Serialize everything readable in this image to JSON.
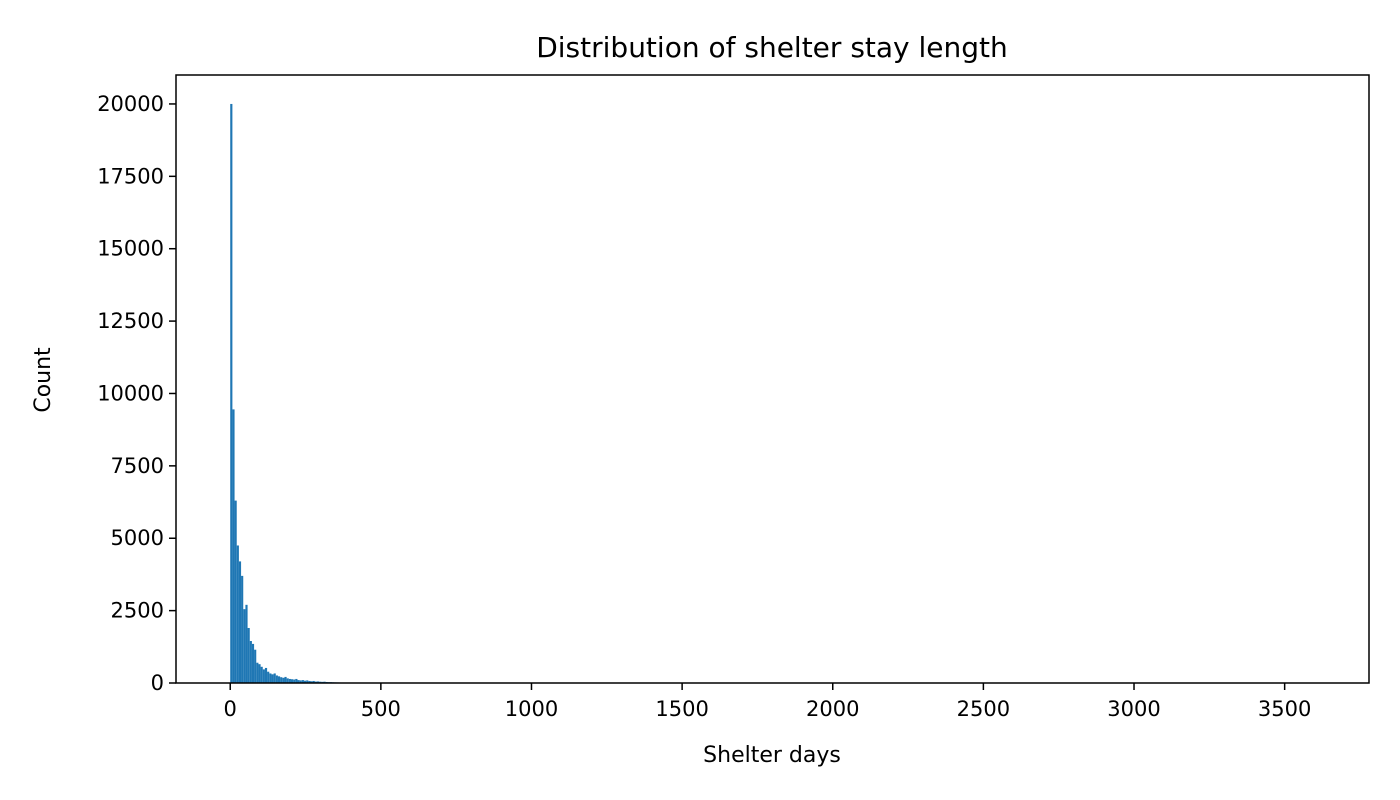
{
  "chart_data": {
    "type": "bar",
    "title": "Distribution of shelter stay length",
    "xlabel": "Shelter days",
    "ylabel": "Count",
    "xlim": [
      -180,
      3780
    ],
    "ylim": [
      0,
      21000
    ],
    "bar_color": "#1f77b4",
    "bin_width": 7.2,
    "xticks": [
      0,
      500,
      1000,
      1500,
      2000,
      2500,
      3000,
      3500
    ],
    "yticks": [
      0,
      2500,
      5000,
      7500,
      10000,
      12500,
      15000,
      17500,
      20000
    ],
    "xtick_labels": [
      "0",
      "500",
      "1000",
      "1500",
      "2000",
      "2500",
      "3000",
      "3500"
    ],
    "ytick_labels": [
      "0",
      "2500",
      "5000",
      "7500",
      "10000",
      "12500",
      "15000",
      "17500",
      "20000"
    ],
    "bin_starts": [
      0,
      7.2,
      14.4,
      21.6,
      28.8,
      36,
      43.2,
      50.4,
      57.6,
      64.8,
      72,
      79.2,
      86.4,
      93.6,
      100.8,
      108,
      115.2,
      122.4,
      129.6,
      136.8,
      144,
      151.2,
      158.4,
      165.6,
      172.8,
      180,
      187.2,
      194.4,
      201.6,
      208.8,
      216,
      223.2,
      230.4,
      237.6,
      244.8,
      252,
      259.2,
      266.4,
      273.6,
      280.8,
      288,
      295.2,
      302.4,
      309.6,
      316.8,
      324,
      331.2,
      338.4,
      345.6,
      352.8,
      360,
      367.2,
      374.4,
      381.6,
      388.8,
      396,
      403.2,
      410.4,
      417.6,
      424.8,
      432,
      439.2,
      446.4,
      453.6,
      460.8,
      468,
      475.2,
      482.4,
      489.6,
      496.8
    ],
    "counts": [
      20000,
      9450,
      6300,
      4750,
      4200,
      3700,
      2550,
      2700,
      1900,
      1450,
      1350,
      1150,
      700,
      650,
      560,
      470,
      520,
      390,
      330,
      300,
      330,
      260,
      230,
      200,
      180,
      210,
      160,
      140,
      130,
      120,
      140,
      100,
      90,
      100,
      80,
      90,
      70,
      60,
      70,
      50,
      55,
      45,
      40,
      45,
      35,
      30,
      30,
      25,
      22,
      20,
      18,
      15,
      14,
      12,
      11,
      10,
      9,
      8,
      8,
      7,
      6,
      6,
      5,
      5,
      5,
      4,
      4,
      4,
      3,
      3
    ]
  }
}
